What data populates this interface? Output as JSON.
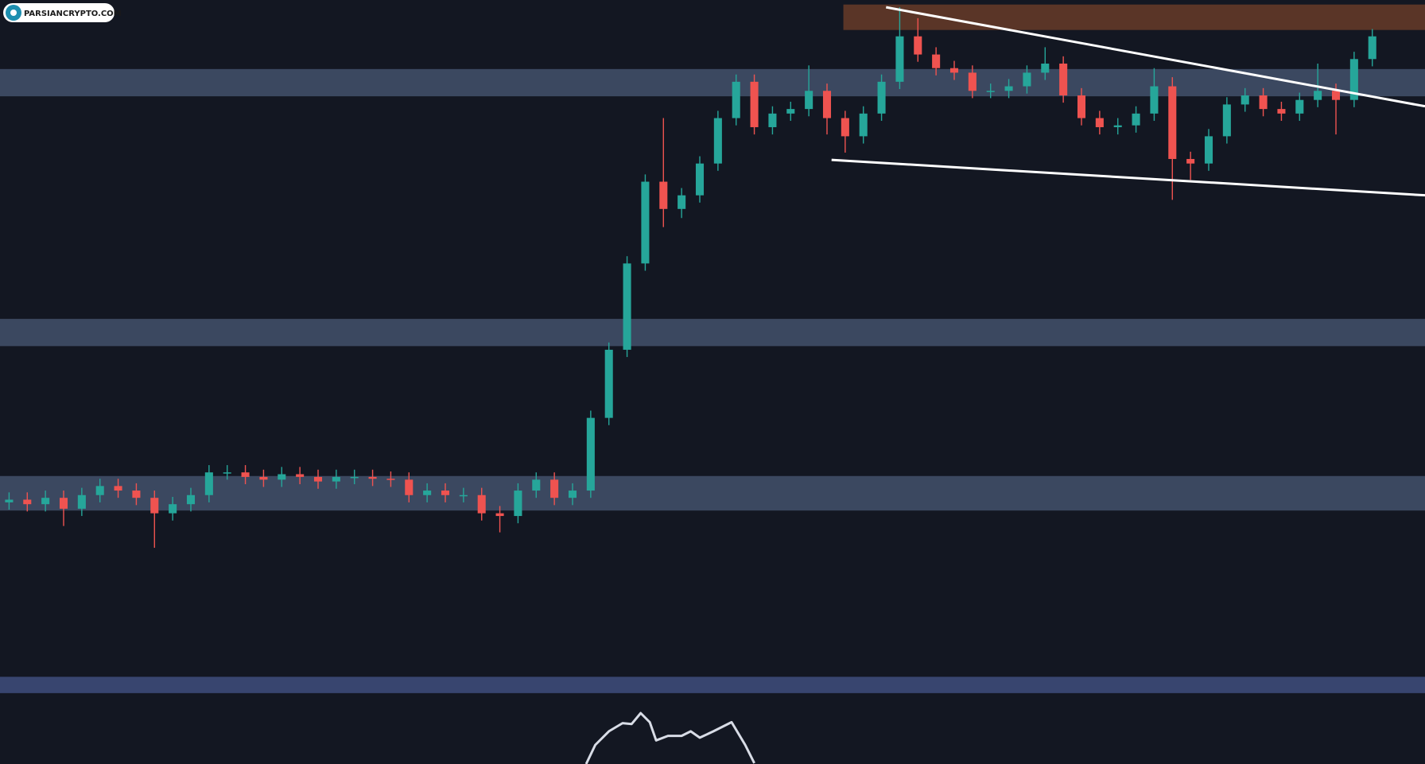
{
  "logo": "PARSIANCRYPTO.COM",
  "chart_data": {
    "type": "candlestick",
    "up_color": "#26a69a",
    "down_color": "#ef5350",
    "xlim": [
      -0.5,
      77.9
    ],
    "ylim": [
      0,
      841
    ],
    "open": [
      288,
      291,
      286,
      293,
      281,
      296,
      306,
      301,
      293,
      276,
      286,
      296,
      321,
      321,
      316,
      313,
      319,
      316,
      311,
      316,
      316,
      314,
      313,
      296,
      301,
      296,
      296,
      276,
      273,
      301,
      313,
      293,
      301,
      381,
      456,
      551,
      641,
      611,
      626,
      661,
      711,
      751,
      701,
      716,
      721,
      741,
      711,
      691,
      716,
      751,
      801,
      781,
      766,
      761,
      741,
      741,
      746,
      761,
      771,
      736,
      711,
      701,
      703,
      716,
      746,
      666,
      661,
      691,
      726,
      736,
      721,
      716,
      731,
      741,
      731,
      776
    ],
    "high": [
      299,
      299,
      301,
      301,
      304,
      314,
      314,
      309,
      301,
      294,
      304,
      329,
      329,
      329,
      324,
      327,
      327,
      324,
      324,
      324,
      324,
      322,
      321,
      309,
      309,
      304,
      304,
      284,
      309,
      321,
      321,
      309,
      389,
      464,
      559,
      649,
      711,
      634,
      669,
      719,
      759,
      759,
      724,
      729,
      769,
      749,
      719,
      724,
      759,
      833,
      821,
      789,
      774,
      769,
      749,
      754,
      769,
      789,
      779,
      744,
      719,
      711,
      724,
      766,
      756,
      674,
      699,
      734,
      744,
      744,
      729,
      739,
      771,
      749,
      784,
      809
    ],
    "low": [
      280,
      278,
      278,
      262,
      273,
      288,
      293,
      285,
      238,
      268,
      278,
      288,
      313,
      308,
      305,
      305,
      308,
      303,
      303,
      308,
      306,
      305,
      288,
      288,
      288,
      288,
      268,
      255,
      265,
      293,
      285,
      285,
      293,
      373,
      448,
      543,
      591,
      601,
      618,
      653,
      703,
      693,
      693,
      708,
      713,
      693,
      673,
      683,
      708,
      743,
      773,
      758,
      753,
      733,
      733,
      733,
      738,
      753,
      728,
      703,
      693,
      693,
      695,
      708,
      621,
      643,
      653,
      683,
      718,
      713,
      708,
      708,
      723,
      693,
      723,
      768
    ],
    "close": [
      291,
      286,
      293,
      281,
      296,
      306,
      301,
      293,
      276,
      286,
      296,
      321,
      321,
      316,
      313,
      319,
      316,
      311,
      316,
      316,
      314,
      313,
      296,
      301,
      296,
      296,
      276,
      273,
      301,
      313,
      293,
      301,
      381,
      456,
      551,
      641,
      611,
      626,
      661,
      711,
      751,
      701,
      716,
      721,
      741,
      711,
      691,
      716,
      751,
      801,
      781,
      766,
      761,
      741,
      741,
      746,
      761,
      771,
      736,
      711,
      701,
      703,
      716,
      746,
      666,
      661,
      691,
      726,
      736,
      721,
      716,
      731,
      741,
      731,
      776,
      801
    ],
    "zones": [
      {
        "from": 735,
        "to": 765,
        "color": "#3b4860"
      },
      {
        "from": 460,
        "to": 490,
        "color": "#3b4860"
      },
      {
        "from": 279,
        "to": 317,
        "color": "#3b4860"
      },
      {
        "from": 78,
        "to": 96,
        "color": "#38456f"
      },
      {
        "from": 808,
        "to": 836,
        "x_from": 45.9,
        "color": "#5a3527"
      }
    ],
    "trendlines": [
      {
        "x": [
          48.25,
          77.9
        ],
        "y": [
          833,
          724
        ],
        "color": "#ffffff"
      },
      {
        "x": [
          45.25,
          77.9
        ],
        "y": [
          665,
          626
        ],
        "color": "#ffffff"
      }
    ],
    "indicator": {
      "color": "#d8dce6",
      "x": [
        31.75,
        32.25,
        33,
        33.75,
        34.25,
        34.75,
        35.25,
        35.6,
        36.25,
        37,
        37.5,
        38,
        38.75,
        39.75,
        40.5,
        41
      ],
      "values": [
        0,
        21,
        36,
        45,
        44,
        56,
        46,
        26,
        31,
        31,
        36,
        29,
        36,
        46,
        21,
        1
      ]
    }
  }
}
